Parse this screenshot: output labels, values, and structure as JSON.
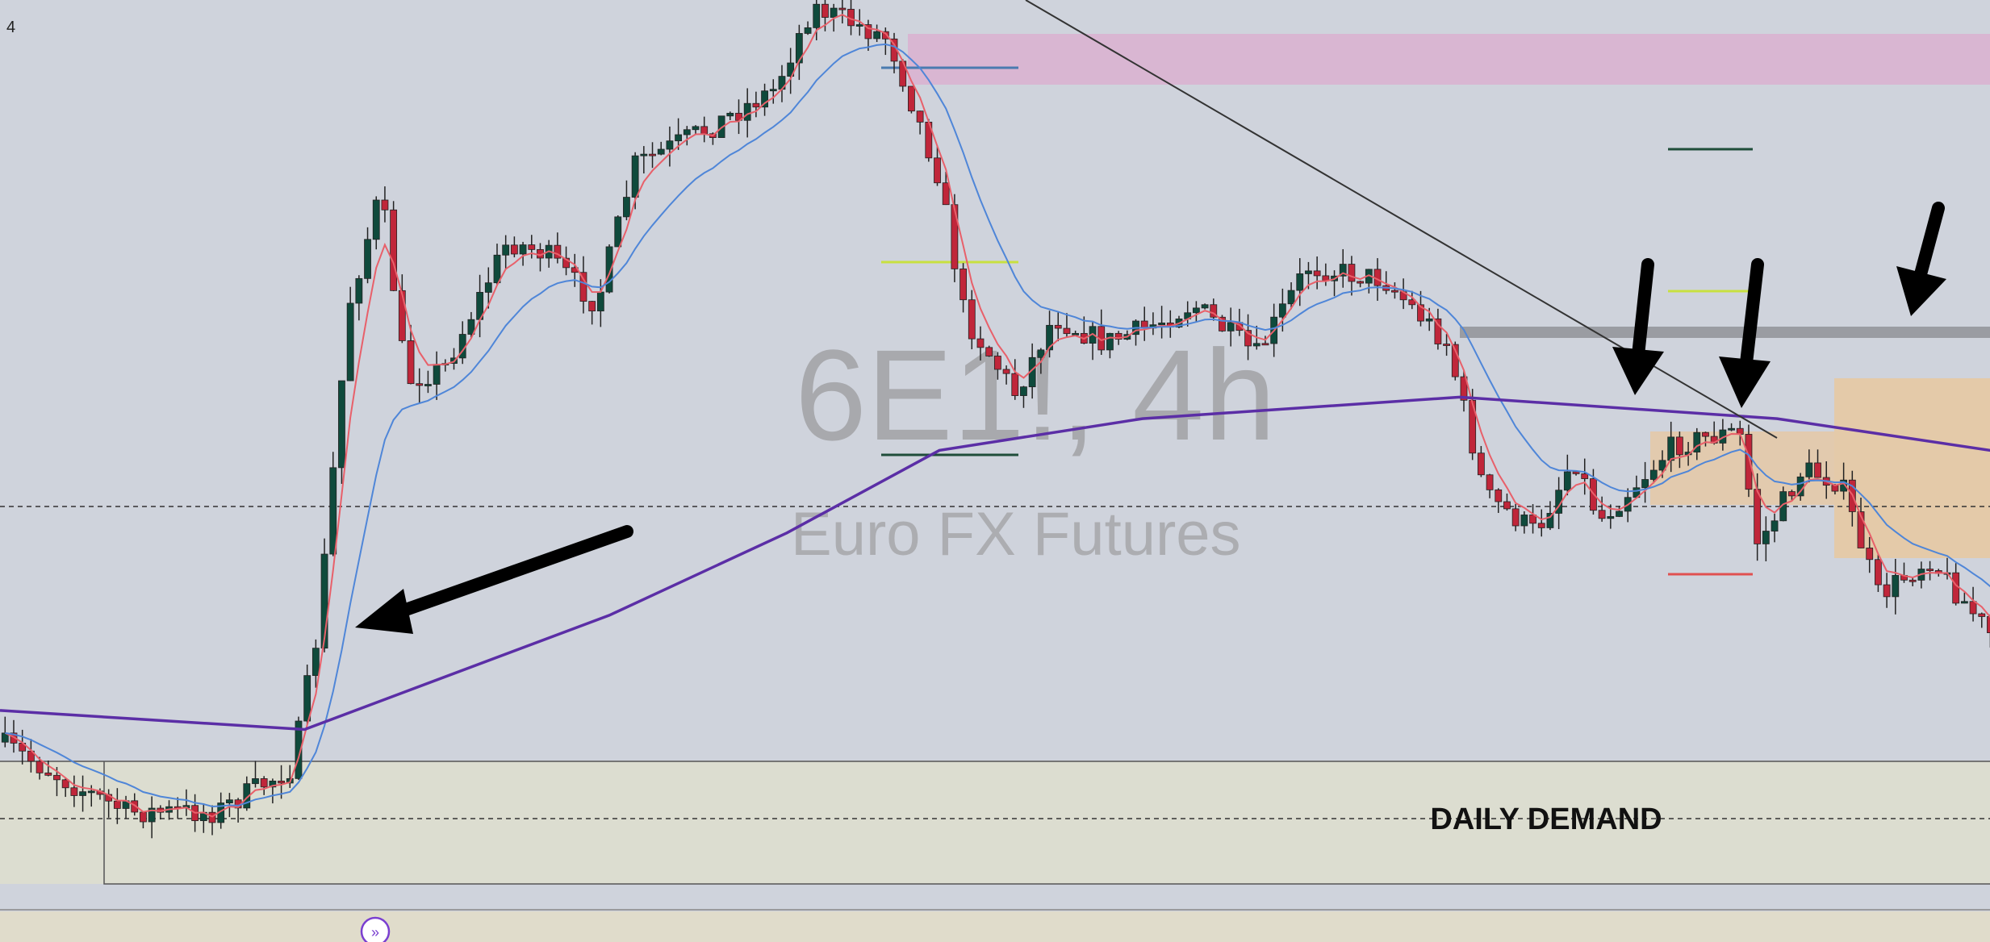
{
  "header": {
    "interval_fragment": "4"
  },
  "watermark": {
    "symbol": "6E1!, 4h",
    "name": "Euro FX Futures"
  },
  "zones": {
    "demand_label": "DAILY DEMAND"
  }
}
